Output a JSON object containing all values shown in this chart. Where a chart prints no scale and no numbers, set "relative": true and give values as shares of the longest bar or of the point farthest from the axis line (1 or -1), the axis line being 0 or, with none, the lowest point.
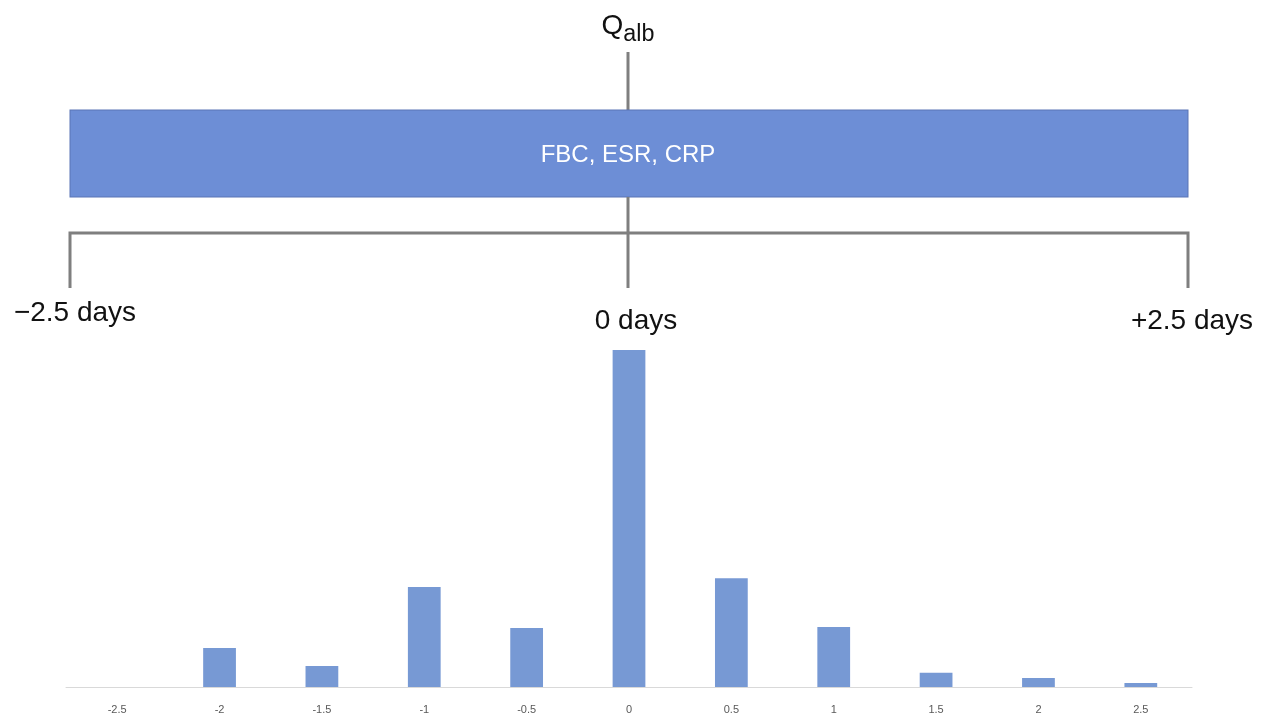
{
  "chart_data": {
    "type": "bar",
    "relative": true,
    "categories": [
      "-2.5",
      "-2",
      "-1.5",
      "-1",
      "-0.5",
      "0",
      "0.5",
      "1",
      "1.5",
      "2",
      "2.5"
    ],
    "values": [
      0,
      0.116,
      0.062,
      0.297,
      0.175,
      1,
      0.323,
      0.178,
      0.042,
      0.027,
      0.012
    ],
    "color": "#7799d4",
    "annotations": [
      "Q$_{alb}$",
      "FBC, ESR, CRP",
      "−2.5 days",
      "0 days",
      "+2.5 days"
    ]
  }
}
